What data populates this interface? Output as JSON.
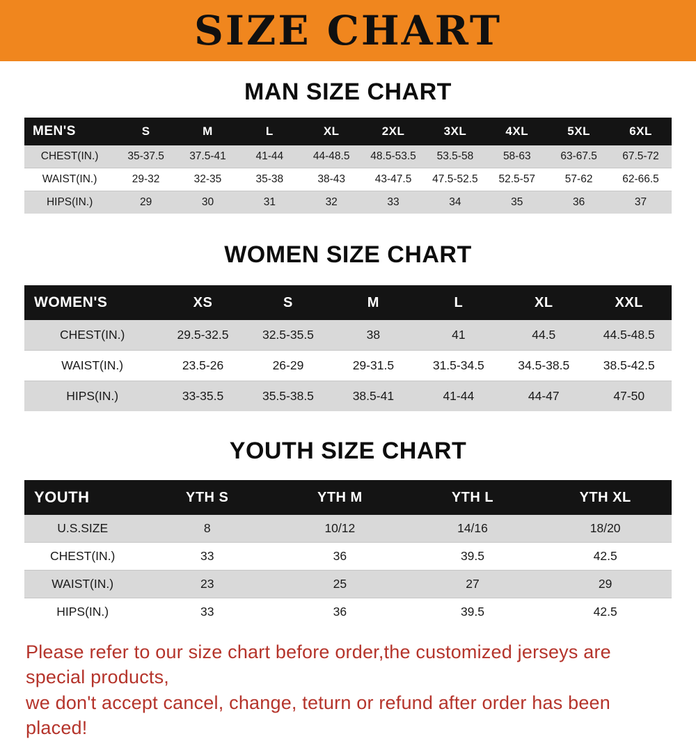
{
  "banner": {
    "title": "SIZE CHART"
  },
  "colors": {
    "accent-orange": "#f0861e",
    "header-black": "#141414",
    "row-gray": "#d9d9d9",
    "row-white": "#ffffff",
    "note-red": "#b5342b"
  },
  "sections": [
    {
      "id": "man-size-chart",
      "css": "men",
      "heading": "MAN SIZE CHART",
      "table": {
        "header": [
          "MEN'S",
          "S",
          "M",
          "L",
          "XL",
          "2XL",
          "3XL",
          "4XL",
          "5XL",
          "6XL"
        ],
        "rows": [
          [
            "CHEST(IN.)",
            "35-37.5",
            "37.5-41",
            "41-44",
            "44-48.5",
            "48.5-53.5",
            "53.5-58",
            "58-63",
            "63-67.5",
            "67.5-72"
          ],
          [
            "WAIST(IN.)",
            "29-32",
            "32-35",
            "35-38",
            "38-43",
            "43-47.5",
            "47.5-52.5",
            "52.5-57",
            "57-62",
            "62-66.5"
          ],
          [
            "HIPS(IN.)",
            "29",
            "30",
            "31",
            "32",
            "33",
            "34",
            "35",
            "36",
            "37"
          ]
        ]
      }
    },
    {
      "id": "women-size-chart",
      "css": "women",
      "heading": "WOMEN SIZE CHART",
      "table": {
        "header": [
          "WOMEN'S",
          "XS",
          "S",
          "M",
          "L",
          "XL",
          "XXL"
        ],
        "rows": [
          [
            "CHEST(IN.)",
            "29.5-32.5",
            "32.5-35.5",
            "38",
            "41",
            "44.5",
            "44.5-48.5"
          ],
          [
            "WAIST(IN.)",
            "23.5-26",
            "26-29",
            "29-31.5",
            "31.5-34.5",
            "34.5-38.5",
            "38.5-42.5"
          ],
          [
            "HIPS(IN.)",
            "33-35.5",
            "35.5-38.5",
            "38.5-41",
            "41-44",
            "44-47",
            "47-50"
          ]
        ]
      }
    },
    {
      "id": "youth-size-chart",
      "css": "youth",
      "heading": "YOUTH SIZE CHART",
      "table": {
        "header": [
          "YOUTH",
          "YTH S",
          "YTH M",
          "YTH L",
          "YTH XL"
        ],
        "rows": [
          [
            "U.S.SIZE",
            "8",
            "10/12",
            "14/16",
            "18/20"
          ],
          [
            "CHEST(IN.)",
            "33",
            "36",
            "39.5",
            "42.5"
          ],
          [
            "WAIST(IN.)",
            "23",
            "25",
            "27",
            "29"
          ],
          [
            "HIPS(IN.)",
            "33",
            "36",
            "39.5",
            "42.5"
          ]
        ]
      }
    }
  ],
  "note": {
    "lines": [
      "Please refer to our size chart before order,the customized jerseys are special products,",
      "we don't accept cancel, change, teturn or refund after order has been placed!"
    ]
  }
}
